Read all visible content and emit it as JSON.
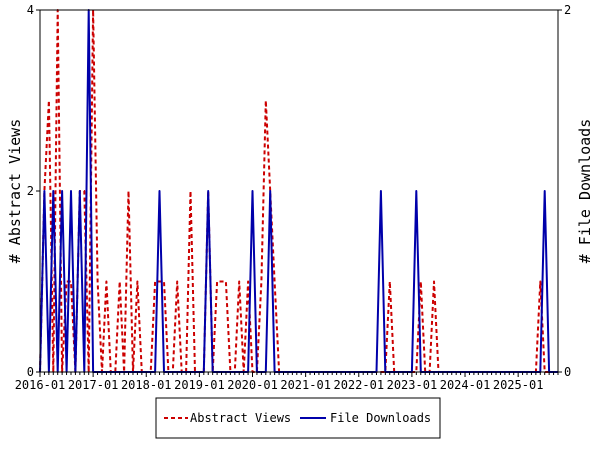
{
  "chart_data": {
    "type": "line",
    "title": "",
    "xlabel": "",
    "ylabel": "# Abstract Views",
    "y2label": "# File Downloads",
    "ylim": [
      0,
      4
    ],
    "y2lim": [
      0,
      2
    ],
    "yticks": [
      "0",
      "2",
      "4"
    ],
    "y2ticks": [
      "0",
      "2"
    ],
    "xrange": [
      "2016-01",
      "2025-10"
    ],
    "xtick_labels": [
      "2016-01",
      "2017-01",
      "2018-01",
      "2019-01",
      "2020-01",
      "2021-01",
      "2022-01",
      "2023-01",
      "2024-01",
      "2025-01"
    ],
    "grid": false,
    "legend_position": "bottom-center",
    "series": [
      {
        "name": "Abstract Views",
        "axis": "left",
        "color": "#cc0000",
        "dash": "dashed",
        "x": [
          "2016-01",
          "2016-02",
          "2016-03",
          "2016-04",
          "2016-05",
          "2016-06",
          "2016-07",
          "2016-08",
          "2016-09",
          "2016-10",
          "2016-11",
          "2016-12",
          "2017-01",
          "2017-02",
          "2017-03",
          "2017-04",
          "2017-05",
          "2017-06",
          "2017-07",
          "2017-08",
          "2017-09",
          "2017-10",
          "2017-11",
          "2017-12",
          "2018-01",
          "2018-02",
          "2018-03",
          "2018-04",
          "2018-05",
          "2018-06",
          "2018-07",
          "2018-08",
          "2018-09",
          "2018-10",
          "2018-11",
          "2018-12",
          "2019-01",
          "2019-02",
          "2019-03",
          "2019-04",
          "2019-05",
          "2019-06",
          "2019-07",
          "2019-08",
          "2019-09",
          "2019-10",
          "2019-11",
          "2019-12",
          "2020-01",
          "2020-02",
          "2020-03",
          "2020-04",
          "2020-05",
          "2020-06",
          "2020-07",
          "2020-08",
          "2020-09",
          "2020-10",
          "2020-11",
          "2020-12",
          "2021-01",
          "2021-02",
          "2021-03",
          "2021-04",
          "2021-05",
          "2021-06",
          "2021-07",
          "2021-08",
          "2021-09",
          "2021-10",
          "2021-11",
          "2021-12",
          "2022-01",
          "2022-02",
          "2022-03",
          "2022-04",
          "2022-05",
          "2022-06",
          "2022-07",
          "2022-08",
          "2022-09",
          "2022-10",
          "2022-11",
          "2022-12",
          "2023-01",
          "2023-02",
          "2023-03",
          "2023-04",
          "2023-05",
          "2023-06",
          "2023-07",
          "2023-08",
          "2023-09",
          "2023-10",
          "2023-11",
          "2023-12",
          "2024-01",
          "2024-02",
          "2024-03",
          "2024-04",
          "2024-05",
          "2024-06",
          "2024-07",
          "2024-08",
          "2024-09",
          "2024-10",
          "2024-11",
          "2024-12",
          "2025-01",
          "2025-02",
          "2025-03",
          "2025-04",
          "2025-05",
          "2025-06",
          "2025-07",
          "2025-08",
          "2025-09",
          "2025-10"
        ],
        "values": [
          0,
          2,
          3,
          0,
          4,
          0,
          1,
          1,
          0,
          2,
          2,
          0,
          4,
          1,
          0,
          1,
          0,
          0,
          1,
          0,
          2,
          0,
          1,
          0,
          0,
          0,
          1,
          1,
          1,
          0,
          0,
          1,
          0,
          0,
          2,
          0,
          0,
          0,
          2,
          0,
          1,
          1,
          1,
          0,
          0,
          1,
          0,
          1,
          0,
          0,
          1,
          3,
          2,
          1,
          0,
          0,
          0,
          0,
          0,
          0,
          0,
          0,
          0,
          0,
          0,
          0,
          0,
          0,
          0,
          0,
          0,
          0,
          0,
          0,
          0,
          0,
          0,
          0,
          0,
          1,
          0,
          0,
          0,
          0,
          0,
          0,
          1,
          0,
          0,
          1,
          0,
          0,
          0,
          0,
          0,
          0,
          0,
          0,
          0,
          0,
          0,
          0,
          0,
          0,
          0,
          0,
          0,
          0,
          0,
          0,
          0,
          0,
          0,
          1,
          0,
          0,
          0,
          0
        ]
      },
      {
        "name": "File Downloads",
        "axis": "right",
        "color": "#0000aa",
        "dash": "solid",
        "x": [
          "2016-01",
          "2016-02",
          "2016-03",
          "2016-04",
          "2016-05",
          "2016-06",
          "2016-07",
          "2016-08",
          "2016-09",
          "2016-10",
          "2016-11",
          "2016-12",
          "2017-01",
          "2017-02",
          "2017-03",
          "2017-04",
          "2017-05",
          "2017-06",
          "2017-07",
          "2017-08",
          "2017-09",
          "2017-10",
          "2017-11",
          "2017-12",
          "2018-01",
          "2018-02",
          "2018-03",
          "2018-04",
          "2018-05",
          "2018-06",
          "2018-07",
          "2018-08",
          "2018-09",
          "2018-10",
          "2018-11",
          "2018-12",
          "2019-01",
          "2019-02",
          "2019-03",
          "2019-04",
          "2019-05",
          "2019-06",
          "2019-07",
          "2019-08",
          "2019-09",
          "2019-10",
          "2019-11",
          "2019-12",
          "2020-01",
          "2020-02",
          "2020-03",
          "2020-04",
          "2020-05",
          "2020-06",
          "2020-07",
          "2020-08",
          "2020-09",
          "2020-10",
          "2020-11",
          "2020-12",
          "2021-01",
          "2021-02",
          "2021-03",
          "2021-04",
          "2021-05",
          "2021-06",
          "2021-07",
          "2021-08",
          "2021-09",
          "2021-10",
          "2021-11",
          "2021-12",
          "2022-01",
          "2022-02",
          "2022-03",
          "2022-04",
          "2022-05",
          "2022-06",
          "2022-07",
          "2022-08",
          "2022-09",
          "2022-10",
          "2022-11",
          "2022-12",
          "2023-01",
          "2023-02",
          "2023-03",
          "2023-04",
          "2023-05",
          "2023-06",
          "2023-07",
          "2023-08",
          "2023-09",
          "2023-10",
          "2023-11",
          "2023-12",
          "2024-01",
          "2024-02",
          "2024-03",
          "2024-04",
          "2024-05",
          "2024-06",
          "2024-07",
          "2024-08",
          "2024-09",
          "2024-10",
          "2024-11",
          "2024-12",
          "2025-01",
          "2025-02",
          "2025-03",
          "2025-04",
          "2025-05",
          "2025-06",
          "2025-07",
          "2025-08",
          "2025-09",
          "2025-10"
        ],
        "values": [
          0,
          1,
          0,
          1,
          0,
          1,
          0,
          1,
          0,
          1,
          0,
          2,
          0,
          0,
          0,
          0,
          0,
          0,
          0,
          0,
          0,
          0,
          0,
          0,
          0,
          0,
          0,
          1,
          0,
          0,
          0,
          0,
          0,
          0,
          0,
          0,
          0,
          0,
          1,
          0,
          0,
          0,
          0,
          0,
          0,
          0,
          0,
          0,
          1,
          0,
          0,
          0,
          1,
          0,
          0,
          0,
          0,
          0,
          0,
          0,
          0,
          0,
          0,
          0,
          0,
          0,
          0,
          0,
          0,
          0,
          0,
          0,
          0,
          0,
          0,
          0,
          0,
          1,
          0,
          0,
          0,
          0,
          0,
          0,
          0,
          1,
          0,
          0,
          0,
          0,
          0,
          0,
          0,
          0,
          0,
          0,
          0,
          0,
          0,
          0,
          0,
          0,
          0,
          0,
          0,
          0,
          0,
          0,
          0,
          0,
          0,
          0,
          0,
          0,
          1,
          0,
          0,
          0
        ]
      }
    ]
  }
}
